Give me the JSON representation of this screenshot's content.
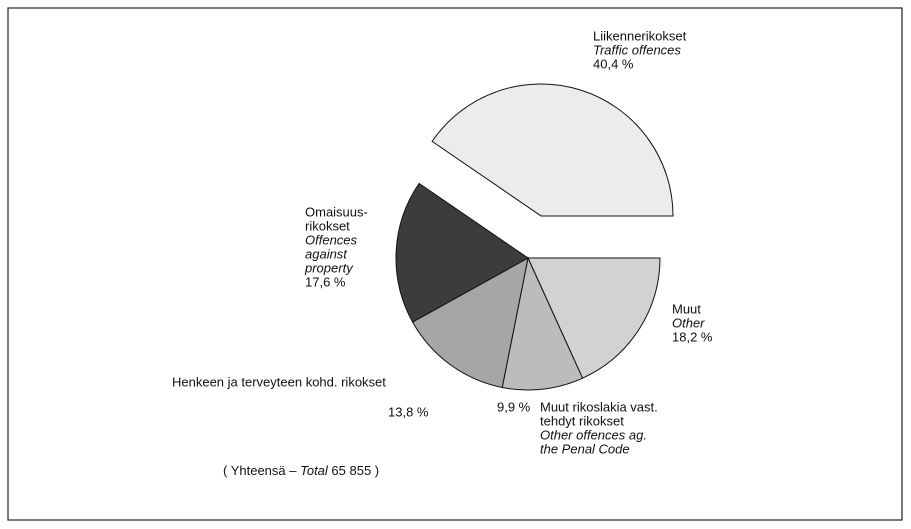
{
  "chart_data": {
    "type": "pie",
    "categories": [
      [
        "Liikennerikokset"
      ],
      [
        "Muut"
      ],
      [
        "Muut rikoslakia vast.",
        "tehdyt rikokset"
      ],
      [
        "Henkeen ja  terveyteen kohd.  rikokset"
      ],
      [
        "Omaisuus-",
        "rikokset"
      ]
    ],
    "categories_en": [
      [
        "Traffic offences"
      ],
      [
        "Other"
      ],
      [
        "Other offences ag.",
        "the Penal Code"
      ],
      null,
      [
        "Offences",
        "against",
        "property"
      ]
    ],
    "values": [
      40.4,
      18.2,
      9.9,
      13.8,
      17.6
    ],
    "value_labels": [
      "40,4 %",
      "18,2 %",
      "9,9 %",
      "13,8 %",
      "17,6 %"
    ],
    "colors": [
      "#ececec",
      "#d2d2d2",
      "#bcbcbc",
      "#a6a6a6",
      "#3c3c3c"
    ],
    "exploded": [
      true,
      false,
      false,
      false,
      false
    ],
    "annotation": [
      "( Yhteensä – ",
      "Total",
      " 65 855 )"
    ]
  }
}
